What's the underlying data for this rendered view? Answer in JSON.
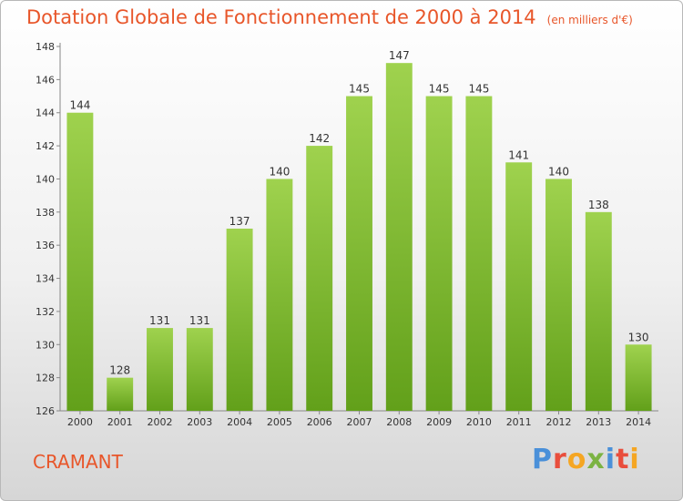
{
  "title": "Dotation Globale de Fonctionnement de 2000 à 2014",
  "unit_note": "(en milliers d'€)",
  "commune": "CRAMANT",
  "logo_text": "Proxiti",
  "colors": {
    "title": "#e8562a",
    "bar_light": "#9fd24e",
    "bar_dark": "#62a01a",
    "axis": "#888888",
    "logo": [
      "#4a90d9",
      "#e94e3c",
      "#f5a623",
      "#7cb342",
      "#4a90d9",
      "#e94e3c",
      "#f5a623"
    ]
  },
  "chart_data": {
    "type": "bar",
    "title": "Dotation Globale de Fonctionnement de 2000 à 2014",
    "subtitle": "(en milliers d'€)",
    "categories": [
      "2000",
      "2001",
      "2002",
      "2003",
      "2004",
      "2005",
      "2006",
      "2007",
      "2008",
      "2009",
      "2010",
      "2011",
      "2012",
      "2013",
      "2014"
    ],
    "values": [
      144,
      128,
      131,
      131,
      137,
      140,
      142,
      145,
      147,
      145,
      145,
      141,
      140,
      138,
      130
    ],
    "ylim": [
      126,
      148
    ],
    "yticks": [
      126,
      128,
      130,
      132,
      134,
      136,
      138,
      140,
      142,
      144,
      146,
      148
    ],
    "xlabel": "",
    "ylabel": "",
    "grid": false
  }
}
